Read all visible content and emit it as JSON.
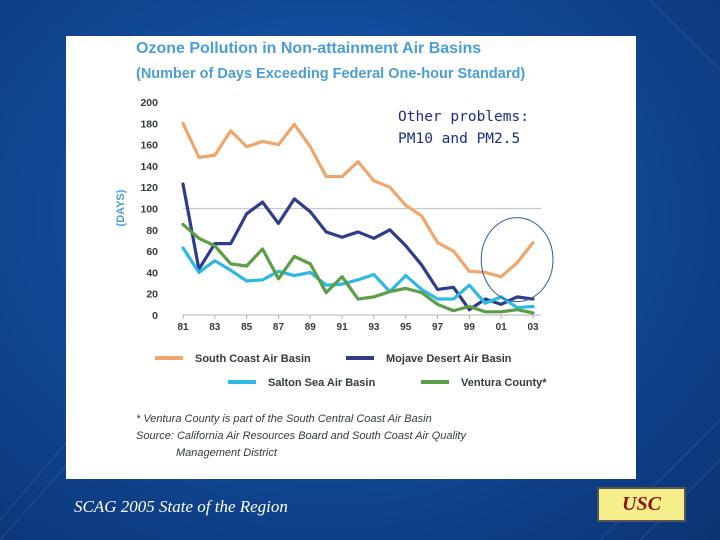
{
  "slide": {
    "footer_left": "SCAG 2005 State of the Region",
    "badge": "USC"
  },
  "overlay_note": {
    "line1": "Other problems:",
    "line2": "PM10 and PM2.5"
  },
  "footnote": {
    "line1": "* Ventura County is part of the South Central Coast Air Basin",
    "line2": "Source: California Air Resources Board and South Coast Air Quality",
    "line3": "Management District"
  },
  "colors": {
    "south_coast": "#f0a66a",
    "mojave": "#2e3c8c",
    "salton": "#2eb8e6",
    "ventura": "#5a9e45",
    "grid": "#c8c8c8",
    "tick": "#333a42",
    "ellipse": "#2a5ab0"
  },
  "chart_data": {
    "type": "line",
    "title": "Ozone Pollution in Non-attainment Air Basins",
    "subtitle": "(Number of Days Exceeding Federal One-hour Standard)",
    "ylabel": "(DAYS)",
    "xlabel": "",
    "ylim": [
      0,
      200
    ],
    "yticks": [
      0,
      20,
      40,
      60,
      80,
      100,
      120,
      140,
      160,
      180,
      200
    ],
    "xlim": [
      1981,
      2003
    ],
    "xticks": [
      "81",
      "83",
      "85",
      "87",
      "89",
      "91",
      "93",
      "95",
      "97",
      "99",
      "01",
      "03"
    ],
    "reference_line": 100,
    "highlight_ellipse_years": [
      2000.5,
      2003.5
    ],
    "x": [
      1981,
      1982,
      1983,
      1984,
      1985,
      1986,
      1987,
      1988,
      1989,
      1990,
      1991,
      1992,
      1993,
      1994,
      1995,
      1996,
      1997,
      1998,
      1999,
      2000,
      2001,
      2002,
      2003
    ],
    "series": [
      {
        "name": "South Coast Air Basin",
        "values": [
          180,
          148,
          150,
          173,
          158,
          163,
          160,
          179,
          158,
          130,
          130,
          144,
          126,
          120,
          103,
          93,
          68,
          60,
          41,
          40,
          36,
          49,
          68
        ]
      },
      {
        "name": "Mojave Desert Air Basin",
        "values": [
          123,
          43,
          67,
          67,
          95,
          106,
          86,
          109,
          97,
          78,
          73,
          78,
          72,
          80,
          65,
          47,
          24,
          26,
          5,
          15,
          10,
          17,
          15
        ]
      },
      {
        "name": "Salton Sea Air Basin",
        "values": [
          63,
          40,
          51,
          42,
          32,
          33,
          41,
          37,
          40,
          28,
          29,
          33,
          38,
          22,
          37,
          24,
          15,
          15,
          28,
          11,
          17,
          7,
          8
        ]
      },
      {
        "name": "Ventura County*",
        "values": [
          85,
          72,
          65,
          48,
          46,
          62,
          34,
          55,
          48,
          21,
          36,
          15,
          17,
          22,
          25,
          21,
          10,
          4,
          8,
          3,
          3,
          5,
          2
        ]
      }
    ]
  }
}
